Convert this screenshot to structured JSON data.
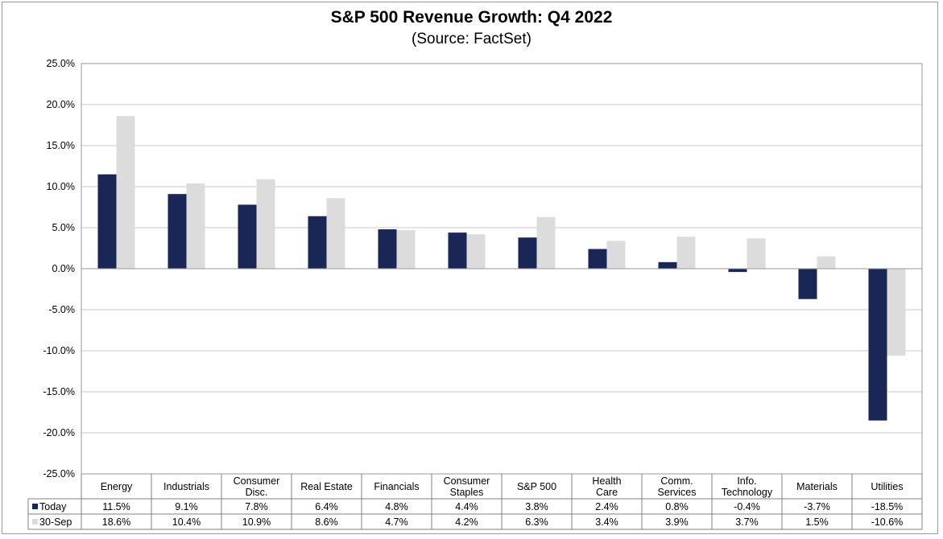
{
  "chart_data": {
    "type": "bar",
    "title": "S&P 500 Revenue Growth: Q4 2022",
    "subtitle": "(Source: FactSet)",
    "xlabel": "",
    "ylabel": "",
    "ylim": [
      -25,
      25
    ],
    "yticks": [
      "25.0%",
      "20.0%",
      "15.0%",
      "10.0%",
      "5.0%",
      "0.0%",
      "-5.0%",
      "-10.0%",
      "-15.0%",
      "-20.0%",
      "-25.0%"
    ],
    "grid": true,
    "categories": [
      [
        "Energy"
      ],
      [
        "Industrials"
      ],
      [
        "Consumer",
        "Disc."
      ],
      [
        "Real Estate"
      ],
      [
        "Financials"
      ],
      [
        "Consumer",
        "Staples"
      ],
      [
        "S&P 500"
      ],
      [
        "Health",
        "Care"
      ],
      [
        "Comm.",
        "Services"
      ],
      [
        "Info.",
        "Technology"
      ],
      [
        "Materials"
      ],
      [
        "Utilities"
      ]
    ],
    "series": [
      {
        "name": "Today",
        "color": "#1a2656",
        "values": [
          11.5,
          9.1,
          7.8,
          6.4,
          4.8,
          4.4,
          3.8,
          2.4,
          0.8,
          -0.4,
          -3.7,
          -18.5
        ],
        "labels": [
          "11.5%",
          "9.1%",
          "7.8%",
          "6.4%",
          "4.8%",
          "4.4%",
          "3.8%",
          "2.4%",
          "0.8%",
          "-0.4%",
          "-3.7%",
          "-18.5%"
        ]
      },
      {
        "name": "30-Sep",
        "color": "#dcdcdc",
        "values": [
          18.6,
          10.4,
          10.9,
          8.6,
          4.7,
          4.2,
          6.3,
          3.4,
          3.9,
          3.7,
          1.5,
          -10.6
        ],
        "labels": [
          "18.6%",
          "10.4%",
          "10.9%",
          "8.6%",
          "4.7%",
          "4.2%",
          "6.3%",
          "3.4%",
          "3.9%",
          "3.7%",
          "1.5%",
          "-10.6%"
        ]
      }
    ],
    "legend": "data table below chart"
  }
}
